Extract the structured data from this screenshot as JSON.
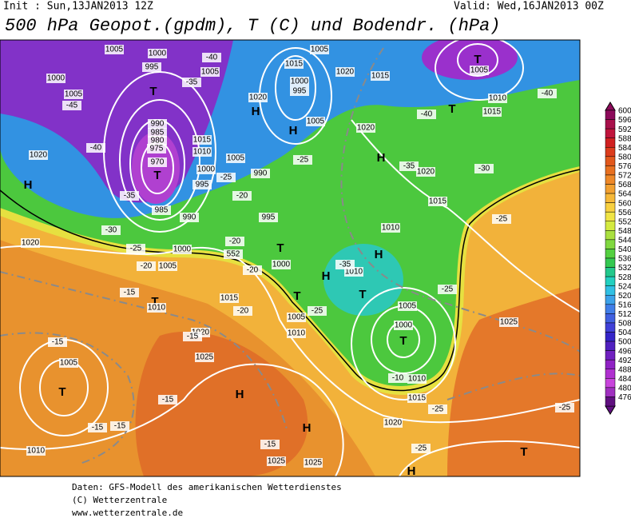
{
  "header": {
    "init": "Init : Sun,13JAN2013 12Z",
    "valid": "Valid: Wed,16JAN2013 00Z",
    "title": "500 hPa Geopot.(gpdm), T (C) und Bodendr. (hPa)"
  },
  "colorbar": {
    "levels": [
      600,
      596,
      592,
      588,
      584,
      580,
      576,
      572,
      568,
      564,
      560,
      556,
      552,
      548,
      544,
      540,
      536,
      532,
      528,
      524,
      520,
      516,
      512,
      508,
      504,
      500,
      496,
      492,
      488,
      484,
      480,
      476
    ],
    "colors": [
      "#8c0a5a",
      "#a8104a",
      "#c0143c",
      "#d02020",
      "#dc3c1c",
      "#e2581c",
      "#e87020",
      "#ee8828",
      "#f2a030",
      "#f6b838",
      "#f8d040",
      "#f0e444",
      "#d4ea40",
      "#aae040",
      "#80d840",
      "#54d040",
      "#34c850",
      "#22c88c",
      "#22d0c0",
      "#30c0e4",
      "#3ca2ea",
      "#407ee8",
      "#4060e0",
      "#4040d8",
      "#3424c8",
      "#5020c0",
      "#7020c0",
      "#9022c4",
      "#b030d0",
      "#c844dc",
      "#a030c0",
      "#601080"
    ]
  },
  "map": {
    "labels": [
      "1005",
      "1000",
      "995",
      "1005",
      "1000",
      "1005",
      "-45",
      "T",
      "-35",
      "-40",
      "1015",
      "1000",
      "1020",
      "H",
      "995",
      "1005",
      "1020",
      "1015",
      "T",
      "1005",
      "T",
      "1010",
      "1015",
      "-40",
      "-40",
      "H",
      "1005",
      "990",
      "985",
      "980",
      "975",
      "970",
      "T",
      "1020",
      "-40",
      "H",
      "1015",
      "1010",
      "1005",
      "1000",
      "995",
      "990",
      "-25",
      "-20",
      "985",
      "990",
      "995",
      "-35",
      "1020",
      "H",
      "-25",
      "-35",
      "1020",
      "-30",
      "1015",
      "1010",
      "1020",
      "-30",
      "-25",
      "1000",
      "-20",
      "552",
      "T",
      "1000",
      "-20",
      "1005",
      "-20",
      "H",
      "1010",
      "-35",
      "H",
      "-25",
      "T",
      "1015",
      "T",
      "-15",
      "T",
      "1010",
      "-20",
      "1005",
      "-25",
      "1005",
      "1000",
      "T",
      "1025",
      "-15",
      "1020",
      "1010",
      "-15",
      "1025",
      "1005",
      "T",
      "H",
      "-15",
      "-10",
      "1010",
      "1015",
      "-25",
      "1020",
      "H",
      "-15",
      "-15",
      "1010",
      "-15",
      "1025",
      "1025",
      "-25",
      "H",
      "T",
      "-25",
      "-25"
    ]
  },
  "footer": {
    "lines": [
      "Daten: GFS-Modell des amerikanischen Wetterdienstes",
      "(C) Wetterzentrale",
      "www.wetterzentrale.de"
    ]
  }
}
